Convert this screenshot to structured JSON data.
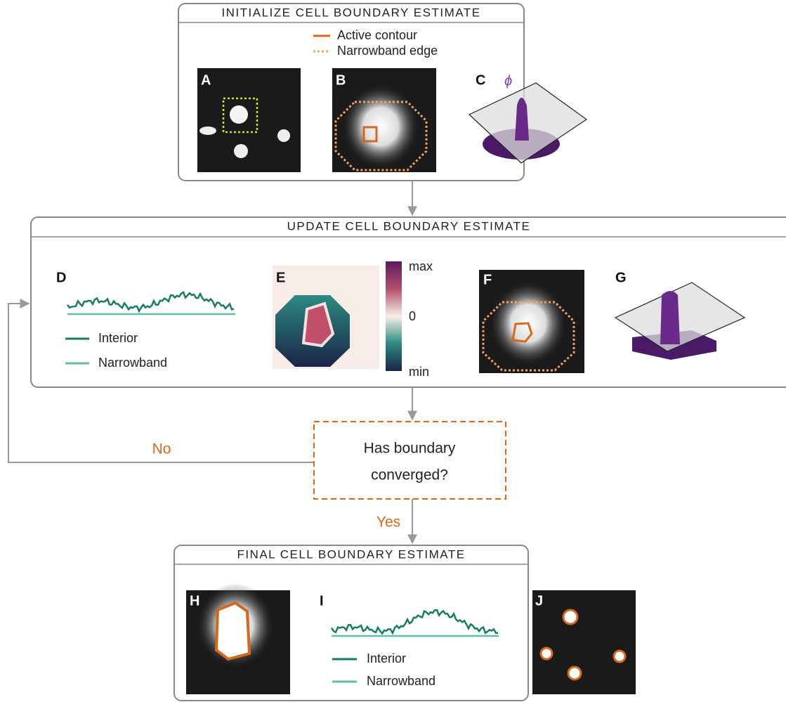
{
  "sections": [
    "INITIALIZE CELL BOUNDARY ESTIMATE",
    "UPDATE CELL BOUNDARY ESTIMATE",
    "FINAL CELL BOUNDARY ESTIMATE"
  ],
  "contour_legend": [
    "Active contour",
    "Narrowband edge"
  ],
  "panel_labels": [
    "A",
    "B",
    "C",
    "D",
    "E",
    "F",
    "G",
    "H",
    "I",
    "J"
  ],
  "phi_label": "ϕ",
  "trace_legend_update": [
    "Interior",
    "Narrowband"
  ],
  "trace_legend_final": [
    "Interior",
    "Narrowband"
  ],
  "colorbar_labels": [
    "max",
    "0",
    "min"
  ],
  "decision": [
    "Has boundary",
    "converged?"
  ],
  "branch_no": "No",
  "branch_yes": "Yes"
}
